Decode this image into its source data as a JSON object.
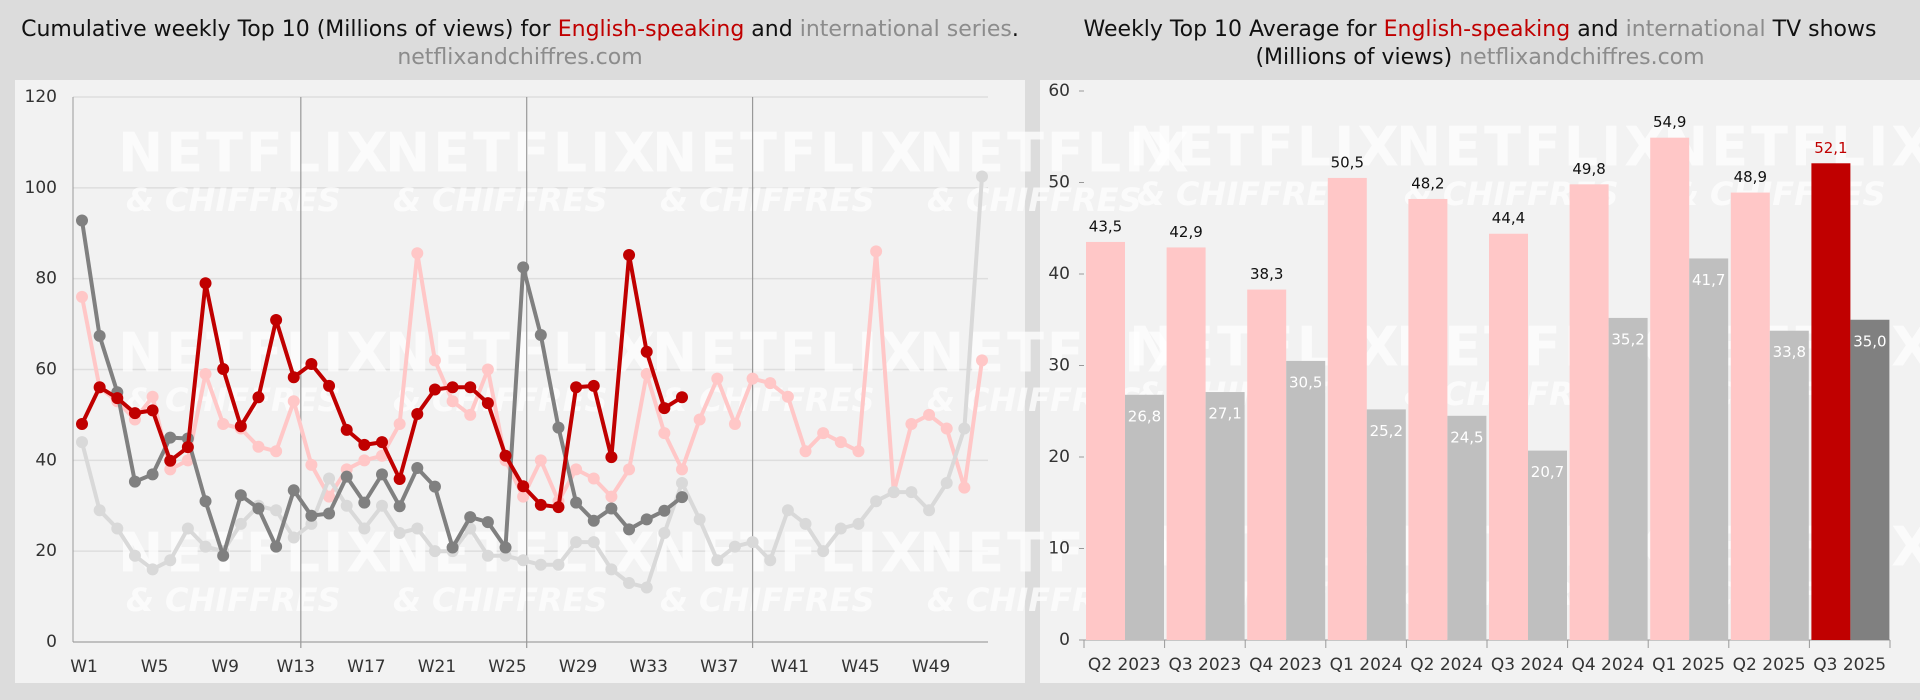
{
  "chart_data": [
    {
      "type": "line",
      "title_parts": [
        {
          "text": "Cumulative weekly Top 10 (Millions of views) for ",
          "color": "#111111"
        },
        {
          "text": "English-speaking",
          "color": "#c00000"
        },
        {
          "text": " and ",
          "color": "#111111"
        },
        {
          "text": "international series",
          "color": "#8c8c8c"
        },
        {
          "text": ".",
          "color": "#111111"
        }
      ],
      "subtitle": "netflixandchiffres.com",
      "watermark": [
        "NETFLIX",
        "& CHIFFRES"
      ],
      "categories": [
        "W1",
        null,
        null,
        null,
        "W5",
        null,
        null,
        null,
        "W9",
        null,
        null,
        null,
        "W13",
        null,
        null,
        null,
        "W17",
        null,
        null,
        null,
        "W21",
        null,
        null,
        null,
        "W25",
        null,
        null,
        null,
        "W29",
        null,
        null,
        null,
        "W33",
        null,
        null,
        null,
        "W37",
        null,
        null,
        null,
        "W41",
        null,
        null,
        null,
        "W45",
        null,
        null,
        null,
        "W49",
        null,
        null,
        null
      ],
      "quarter_separators": [
        12.4,
        25.2,
        38
      ],
      "ylim": [
        0,
        120
      ],
      "yticks": [
        0,
        20,
        40,
        60,
        80,
        100,
        120
      ],
      "grid": true,
      "series": [
        {
          "color": "#ffc7c7",
          "values": [
            76,
            56,
            53,
            49,
            54,
            38,
            40,
            59,
            48,
            47,
            43,
            42,
            53,
            39,
            32,
            38,
            40,
            41,
            48,
            85.6,
            62,
            53,
            50,
            60,
            40,
            32,
            40,
            31,
            38,
            36,
            32,
            38,
            59,
            46,
            38,
            49,
            58,
            48,
            58,
            57,
            54,
            42,
            46,
            44,
            42,
            86,
            33,
            48,
            50,
            47,
            34,
            62
          ]
        },
        {
          "color": "#d9d9d9",
          "values": [
            44,
            29,
            25,
            19,
            16,
            18,
            25,
            21,
            20,
            26,
            30,
            29,
            23,
            26,
            36,
            30,
            25,
            30,
            24,
            25,
            20,
            20,
            25,
            19,
            19,
            18,
            17,
            17,
            22,
            22,
            16,
            13,
            12,
            24,
            35,
            27,
            18,
            21,
            22,
            18,
            29,
            26,
            20,
            25,
            26,
            31,
            33,
            33,
            29,
            35,
            47,
            102.5
          ]
        },
        {
          "color": "#808080",
          "values": [
            92.8,
            67.4,
            55,
            35.3,
            36.9,
            45,
            44.8,
            31,
            19,
            32.3,
            29.4,
            21,
            33.4,
            27.8,
            28.3,
            36.4,
            30.7,
            36.9,
            29.9,
            38.3,
            34.2,
            20.8,
            27.5,
            26.4,
            20.8,
            82.5,
            67.6,
            47.2,
            30.7,
            26.7,
            29.4,
            24.8,
            27,
            28.9,
            31.9,
            null,
            null,
            null,
            null,
            null,
            null,
            null,
            null,
            null,
            null,
            null,
            null,
            null,
            null,
            null,
            null,
            null
          ]
        },
        {
          "color": "#c00000",
          "values": [
            48,
            56.1,
            53.7,
            50.4,
            51,
            39.9,
            42.9,
            79,
            60.1,
            47.5,
            53.9,
            70.9,
            58.3,
            61.2,
            56.4,
            46.7,
            43.4,
            44,
            35.9,
            50.2,
            55.6,
            56.1,
            56.1,
            52.6,
            41,
            34.3,
            30.2,
            29.7,
            56.1,
            56.4,
            40.7,
            85.2,
            63.9,
            51.5,
            53.9,
            null,
            null,
            null,
            null,
            null,
            null,
            null,
            null,
            null,
            null,
            null,
            null,
            null,
            null,
            null,
            null,
            null
          ]
        }
      ]
    },
    {
      "type": "bar",
      "title_parts": [
        {
          "text": "Weekly Top 10 Average for ",
          "color": "#111111"
        },
        {
          "text": "English-speaking",
          "color": "#c00000"
        },
        {
          "text": " and ",
          "color": "#111111"
        },
        {
          "text": "international",
          "color": "#8c8c8c"
        },
        {
          "text": " TV shows",
          "color": "#111111"
        }
      ],
      "title_parts_2": [
        {
          "text": "(Millions of views) ",
          "color": "#111111"
        },
        {
          "text": "netflixandchiffres.com",
          "color": "#8c8c8c"
        }
      ],
      "watermark": [
        "NETFLIX",
        "& CHIFFRES"
      ],
      "categories": [
        "Q2 2023",
        "Q3 2023",
        "Q4 2023",
        "Q1 2024",
        "Q2 2024",
        "Q3 2024",
        "Q4 2024",
        "Q1 2025",
        "Q2 2025",
        "Q3 2025"
      ],
      "ylim": [
        0,
        60
      ],
      "yticks": [
        0,
        10,
        20,
        30,
        40,
        50,
        60
      ],
      "series": [
        {
          "colors": [
            "#ffc7c7",
            "#ffc7c7",
            "#ffc7c7",
            "#ffc7c7",
            "#ffc7c7",
            "#ffc7c7",
            "#ffc7c7",
            "#ffc7c7",
            "#ffc7c7",
            "#c00000"
          ],
          "label_colors": [
            "#111111",
            "#111111",
            "#111111",
            "#111111",
            "#111111",
            "#111111",
            "#111111",
            "#111111",
            "#111111",
            "#c00000"
          ],
          "label_position": "above",
          "values": [
            43.5,
            42.9,
            38.3,
            50.5,
            48.2,
            44.4,
            49.8,
            54.9,
            48.9,
            52.1
          ],
          "value_labels": [
            "43,5",
            "42,9",
            "38,3",
            "50,5",
            "48,2",
            "44,4",
            "49,8",
            "54,9",
            "48,9",
            "52,1"
          ]
        },
        {
          "colors": [
            "#bfbfbf",
            "#bfbfbf",
            "#bfbfbf",
            "#bfbfbf",
            "#bfbfbf",
            "#bfbfbf",
            "#bfbfbf",
            "#bfbfbf",
            "#bfbfbf",
            "#808080"
          ],
          "label_colors": [
            "#ffffff",
            "#ffffff",
            "#ffffff",
            "#ffffff",
            "#ffffff",
            "#ffffff",
            "#ffffff",
            "#ffffff",
            "#ffffff",
            "#ffffff"
          ],
          "label_position": "inside",
          "values": [
            26.8,
            27.1,
            30.5,
            25.2,
            24.5,
            20.7,
            35.2,
            41.7,
            33.8,
            35.0
          ],
          "value_labels": [
            "26,8",
            "27,1",
            "30,5",
            "25,2",
            "24,5",
            "20,7",
            "35,2",
            "41,7",
            "33,8",
            "35,0"
          ]
        }
      ]
    }
  ]
}
